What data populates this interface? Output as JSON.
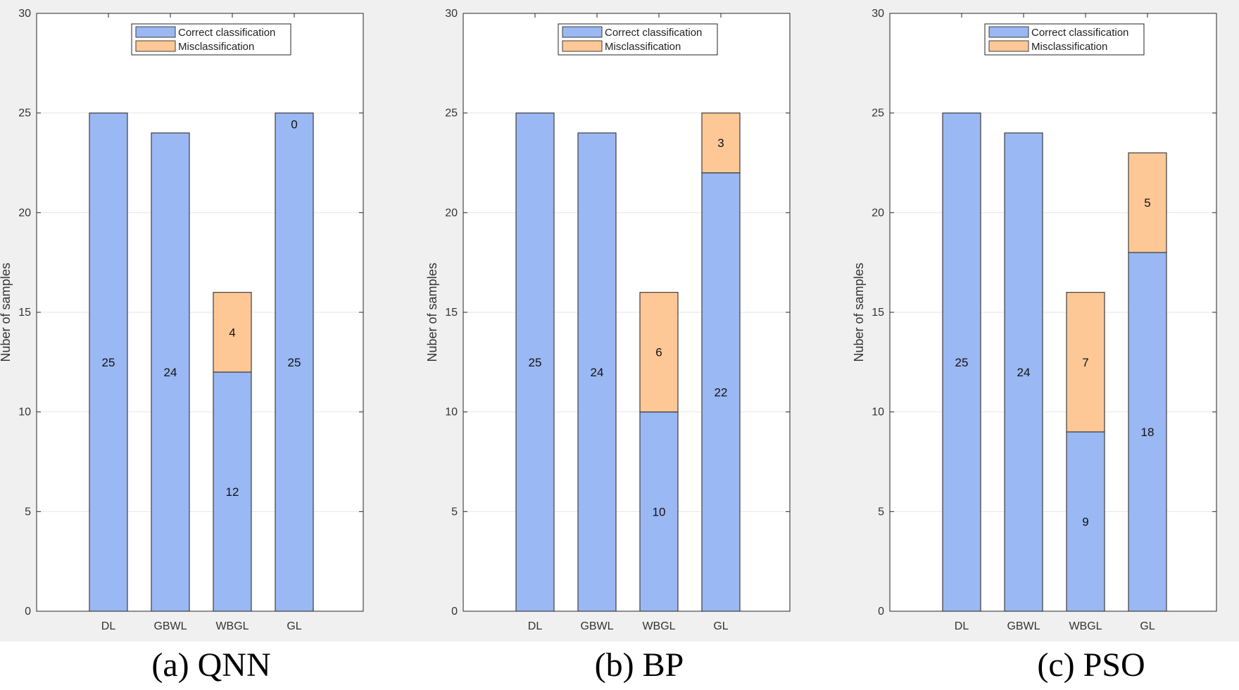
{
  "chart_data": [
    {
      "type": "bar",
      "stacked": true,
      "title": "(a)  QNN",
      "categories": [
        "DL",
        "GBWL",
        "WBGL",
        "GL"
      ],
      "series": [
        {
          "name": "Correct classification",
          "values": [
            25,
            24,
            12,
            25
          ],
          "color": "#9ab8f3"
        },
        {
          "name": "Misclassification",
          "values": [
            0,
            0,
            4,
            0
          ],
          "color": "#fdc896"
        }
      ],
      "data_labels": {
        "correct": [
          "25",
          "24",
          "12",
          "25"
        ],
        "misclassification": [
          "",
          "",
          "4",
          "0"
        ]
      },
      "ylabel": "Nuber of samples",
      "xlabel": "",
      "ylim": [
        0,
        30
      ],
      "yticks": [
        0,
        5,
        10,
        15,
        20,
        25,
        30
      ],
      "grid": true,
      "legend_position": "top-center"
    },
    {
      "type": "bar",
      "stacked": true,
      "title": "(b) BP",
      "categories": [
        "DL",
        "GBWL",
        "WBGL",
        "GL"
      ],
      "series": [
        {
          "name": "Correct classification",
          "values": [
            25,
            24,
            10,
            22
          ],
          "color": "#9ab8f3"
        },
        {
          "name": "Misclassification",
          "values": [
            0,
            0,
            6,
            3
          ],
          "color": "#fdc896"
        }
      ],
      "data_labels": {
        "correct": [
          "25",
          "24",
          "10",
          "22"
        ],
        "misclassification": [
          "",
          "",
          "6",
          "3"
        ]
      },
      "ylabel": "Nuber of samples",
      "xlabel": "",
      "ylim": [
        0,
        30
      ],
      "yticks": [
        0,
        5,
        10,
        15,
        20,
        25,
        30
      ],
      "grid": true,
      "legend_position": "top-center"
    },
    {
      "type": "bar",
      "stacked": true,
      "title": "(c) PSO",
      "categories": [
        "DL",
        "GBWL",
        "WBGL",
        "GL"
      ],
      "series": [
        {
          "name": "Correct classification",
          "values": [
            25,
            24,
            9,
            18
          ],
          "color": "#9ab8f3"
        },
        {
          "name": "Misclassification",
          "values": [
            0,
            0,
            7,
            5
          ],
          "color": "#fdc896"
        }
      ],
      "data_labels": {
        "correct": [
          "25",
          "24",
          "9",
          "18"
        ],
        "misclassification": [
          "",
          "",
          "7",
          "5"
        ]
      },
      "ylabel": "Nuber of samples",
      "xlabel": "",
      "ylim": [
        0,
        30
      ],
      "yticks": [
        0,
        5,
        10,
        15,
        20,
        25,
        30
      ],
      "grid": true,
      "legend_position": "top-center"
    }
  ]
}
